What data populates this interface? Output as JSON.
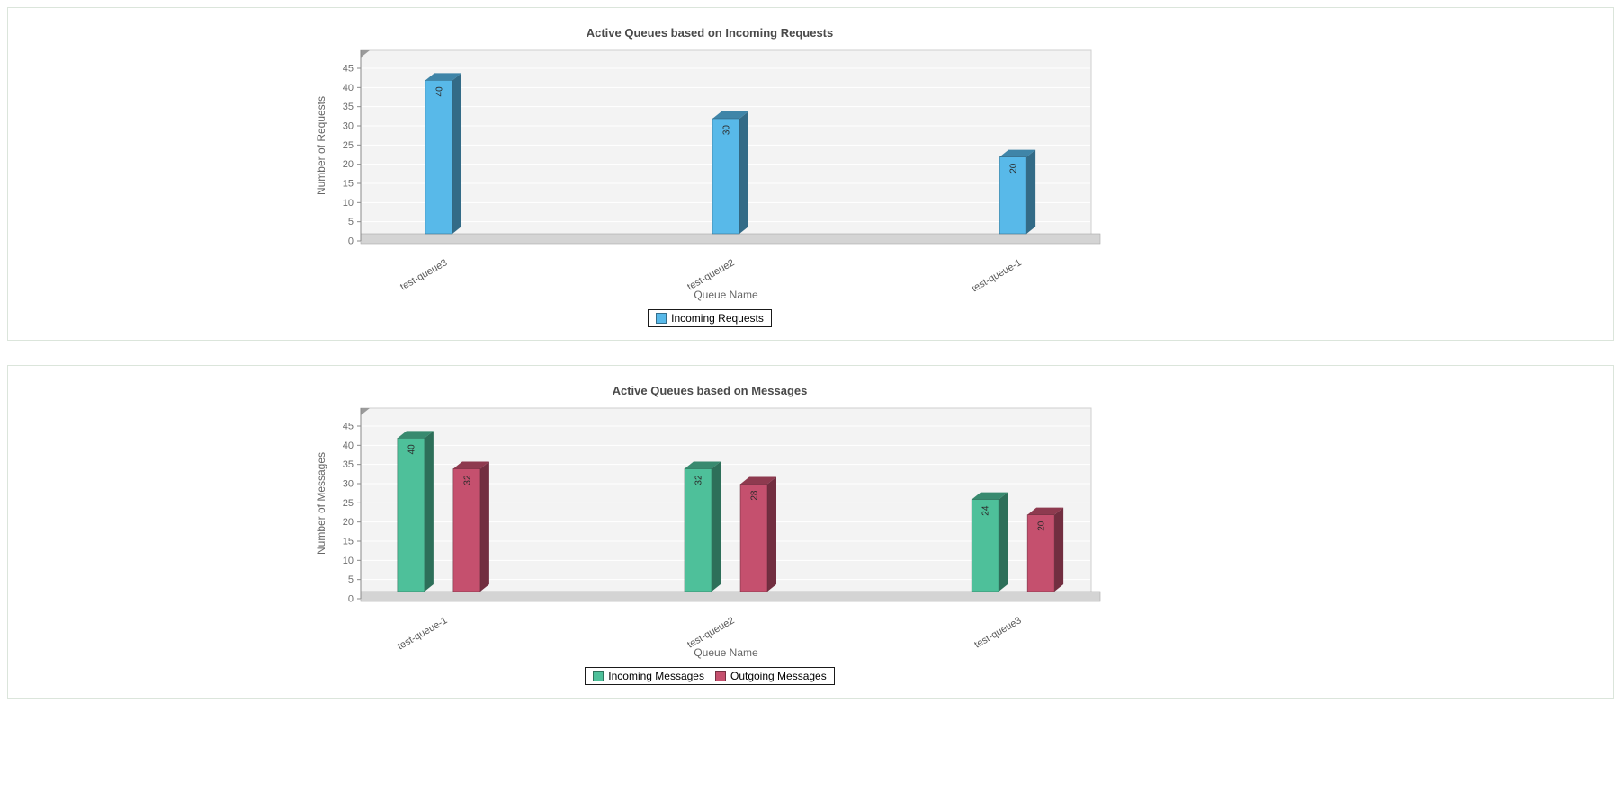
{
  "chart_data": [
    {
      "type": "bar",
      "effect": "3d",
      "title": "Active Queues based on Incoming Requests",
      "categories": [
        "test-queue3",
        "test-queue2",
        "test-queue-1"
      ],
      "series": [
        {
          "name": "Incoming Requests",
          "color": "#58b9e9",
          "values": [
            40,
            30,
            20
          ]
        }
      ],
      "xlabel": "Queue Name",
      "ylabel": "Number of Requests",
      "ylim": [
        0,
        45
      ],
      "ytick_step": 5,
      "grid": true,
      "legend_position": "bottom"
    },
    {
      "type": "bar",
      "effect": "3d",
      "title": "Active Queues based on Messages",
      "categories": [
        "test-queue-1",
        "test-queue2",
        "test-queue3"
      ],
      "series": [
        {
          "name": "Incoming Messages",
          "color": "#4ec09a",
          "values": [
            40,
            32,
            24
          ]
        },
        {
          "name": "Outgoing Messages",
          "color": "#c5506e",
          "values": [
            32,
            28,
            20
          ]
        }
      ],
      "xlabel": "Queue Name",
      "ylabel": "Number of Messages",
      "ylim": [
        0,
        45
      ],
      "ytick_step": 5,
      "grid": true,
      "legend_position": "bottom"
    }
  ]
}
